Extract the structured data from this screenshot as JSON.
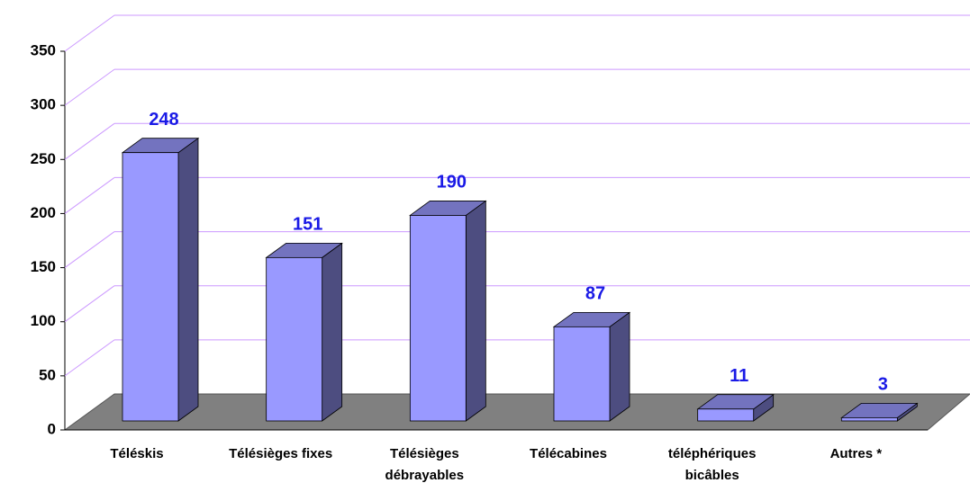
{
  "chart_data": {
    "type": "bar3d",
    "categories": [
      "Téléskis",
      "Télésièges fixes",
      "Télésièges débrayables",
      "Télécabines",
      "téléphériques bicâbles",
      "Autres *"
    ],
    "values": [
      248,
      151,
      190,
      87,
      11,
      3
    ],
    "color": "#9999ff",
    "ylim": [
      0,
      350
    ],
    "yticks": [
      0,
      50,
      100,
      150,
      200,
      250,
      300,
      350
    ],
    "grid": true
  }
}
